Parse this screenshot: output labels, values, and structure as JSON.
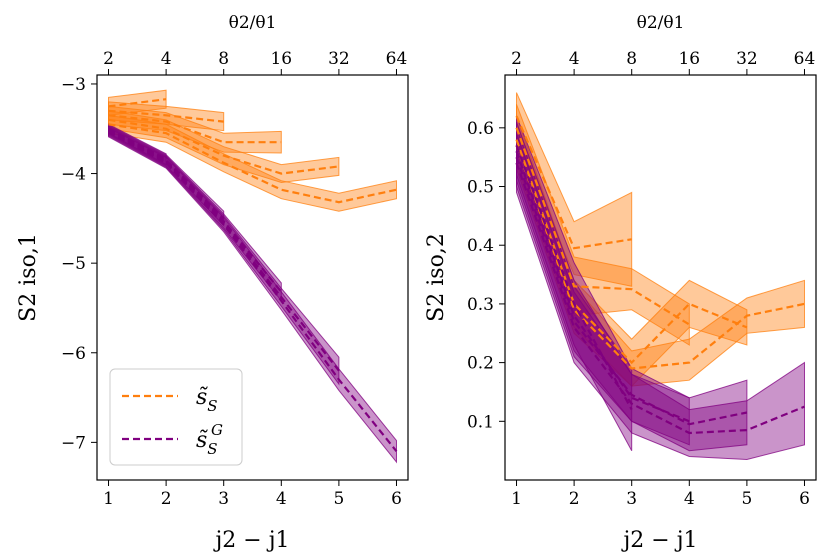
{
  "chart_data": [
    {
      "type": "line",
      "panel": "left",
      "xlabel": "j2 − j1",
      "ylabel": "S2 iso,1",
      "top_xlabel": "θ2/θ1",
      "x_ticks": [
        1,
        2,
        3,
        4,
        5,
        6
      ],
      "x_tick_labels": [
        "1",
        "2",
        "3",
        "4",
        "5",
        "6"
      ],
      "top_tick_labels": [
        "2",
        "4",
        "8",
        "16",
        "32",
        "64"
      ],
      "y_ticks": [
        -3,
        -4,
        -5,
        -6,
        -7
      ],
      "y_tick_labels": [
        "−3",
        "−4",
        "−5",
        "−6",
        "−7"
      ],
      "xlim": [
        0.8,
        6.2
      ],
      "ylim": [
        -7.42,
        -2.9
      ],
      "legend_position": "lower-left",
      "legend": [
        {
          "label": "s̃S",
          "label_base": "s̃",
          "label_sub": "S",
          "label_sup": "",
          "color": "#ff7f0e"
        },
        {
          "label": "s̃S^G",
          "label_base": "s̃",
          "label_sub": "S",
          "label_sup": "G",
          "color": "#800080"
        }
      ],
      "series": [
        {
          "name": "orange j1=1",
          "color": "#ff7f0e",
          "x": [
            1,
            2
          ],
          "y": [
            -3.25,
            -3.17
          ],
          "lower": [
            -3.35,
            -3.27
          ],
          "upper": [
            -3.15,
            -3.07
          ]
        },
        {
          "name": "orange j1=2",
          "color": "#ff7f0e",
          "x": [
            1,
            2,
            3
          ],
          "y": [
            -3.3,
            -3.35,
            -3.42
          ],
          "lower": [
            -3.4,
            -3.45,
            -3.52
          ],
          "upper": [
            -3.2,
            -3.25,
            -3.32
          ]
        },
        {
          "name": "orange j1=3",
          "color": "#ff7f0e",
          "x": [
            1,
            2,
            3,
            4
          ],
          "y": [
            -3.35,
            -3.42,
            -3.65,
            -3.65
          ],
          "lower": [
            -3.45,
            -3.52,
            -3.76,
            -3.77
          ],
          "upper": [
            -3.25,
            -3.32,
            -3.55,
            -3.53
          ]
        },
        {
          "name": "orange j1=4",
          "color": "#ff7f0e",
          "x": [
            1,
            2,
            3,
            4,
            5
          ],
          "y": [
            -3.4,
            -3.5,
            -3.8,
            -4.0,
            -3.92
          ],
          "lower": [
            -3.5,
            -3.6,
            -3.9,
            -4.1,
            -4.02
          ],
          "upper": [
            -3.3,
            -3.4,
            -3.7,
            -3.9,
            -3.82
          ]
        },
        {
          "name": "orange j1=5",
          "color": "#ff7f0e",
          "x": [
            1,
            2,
            3,
            4,
            5,
            6
          ],
          "y": [
            -3.45,
            -3.55,
            -3.88,
            -4.18,
            -4.32,
            -4.18
          ],
          "lower": [
            -3.55,
            -3.65,
            -3.98,
            -4.28,
            -4.42,
            -4.28
          ],
          "upper": [
            -3.35,
            -3.45,
            -3.78,
            -4.08,
            -4.22,
            -4.08
          ]
        },
        {
          "name": "purple j1=1",
          "color": "#800080",
          "x": [
            1,
            2
          ],
          "y": [
            -3.5,
            -3.84
          ],
          "lower": [
            -3.55,
            -3.9
          ],
          "upper": [
            -3.45,
            -3.78
          ]
        },
        {
          "name": "purple j1=2",
          "color": "#800080",
          "x": [
            1,
            2,
            3
          ],
          "y": [
            -3.51,
            -3.85,
            -4.5
          ],
          "lower": [
            -3.56,
            -3.91,
            -4.58
          ],
          "upper": [
            -3.46,
            -3.79,
            -4.42
          ]
        },
        {
          "name": "purple j1=3",
          "color": "#800080",
          "x": [
            1,
            2,
            3,
            4
          ],
          "y": [
            -3.52,
            -3.86,
            -4.53,
            -5.32
          ],
          "lower": [
            -3.57,
            -3.92,
            -4.61,
            -5.42
          ],
          "upper": [
            -3.47,
            -3.8,
            -4.45,
            -5.22
          ]
        },
        {
          "name": "purple j1=4",
          "color": "#800080",
          "x": [
            1,
            2,
            3,
            4,
            5
          ],
          "y": [
            -3.53,
            -3.87,
            -4.55,
            -5.38,
            -6.2
          ],
          "lower": [
            -3.58,
            -3.93,
            -4.63,
            -5.48,
            -6.35
          ],
          "upper": [
            -3.48,
            -3.81,
            -4.47,
            -5.28,
            -6.05
          ]
        },
        {
          "name": "purple j1=5",
          "color": "#800080",
          "x": [
            1,
            2,
            3,
            4,
            5,
            6
          ],
          "y": [
            -3.54,
            -3.88,
            -4.57,
            -5.42,
            -6.3,
            -7.1
          ],
          "lower": [
            -3.59,
            -3.94,
            -4.65,
            -5.52,
            -6.42,
            -7.22
          ],
          "upper": [
            -3.49,
            -3.82,
            -4.49,
            -5.32,
            -6.18,
            -6.98
          ]
        }
      ]
    },
    {
      "type": "line",
      "panel": "right",
      "xlabel": "j2 − j1",
      "ylabel": "S2 iso,2",
      "top_xlabel": "θ2/θ1",
      "x_ticks": [
        1,
        2,
        3,
        4,
        5,
        6
      ],
      "x_tick_labels": [
        "1",
        "2",
        "3",
        "4",
        "5",
        "6"
      ],
      "top_tick_labels": [
        "2",
        "4",
        "8",
        "16",
        "32",
        "64"
      ],
      "y_ticks": [
        0.1,
        0.2,
        0.3,
        0.4,
        0.5,
        0.6
      ],
      "y_tick_labels": [
        "0.1",
        "0.2",
        "0.3",
        "0.4",
        "0.5",
        "0.6"
      ],
      "xlim": [
        0.8,
        6.2
      ],
      "ylim": [
        0.0,
        0.69
      ],
      "series": [
        {
          "name": "orange j1=1",
          "color": "#ff7f0e",
          "x": [
            1,
            2,
            3
          ],
          "y": [
            0.62,
            0.395,
            0.41
          ],
          "lower": [
            0.58,
            0.35,
            0.33
          ],
          "upper": [
            0.66,
            0.44,
            0.49
          ]
        },
        {
          "name": "orange j1=2",
          "color": "#ff7f0e",
          "x": [
            1,
            2,
            3,
            4
          ],
          "y": [
            0.6,
            0.33,
            0.325,
            0.265
          ],
          "lower": [
            0.56,
            0.28,
            0.29,
            0.23
          ],
          "upper": [
            0.64,
            0.38,
            0.36,
            0.3
          ]
        },
        {
          "name": "orange j1=3",
          "color": "#ff7f0e",
          "x": [
            1,
            2,
            3,
            4,
            5
          ],
          "y": [
            0.58,
            0.3,
            0.2,
            0.3,
            0.26
          ],
          "lower": [
            0.54,
            0.26,
            0.16,
            0.26,
            0.23
          ],
          "upper": [
            0.62,
            0.34,
            0.24,
            0.34,
            0.29
          ]
        },
        {
          "name": "orange j1=4",
          "color": "#ff7f0e",
          "x": [
            1,
            2,
            3,
            4,
            5,
            6
          ],
          "y": [
            0.57,
            0.29,
            0.19,
            0.2,
            0.28,
            0.3
          ],
          "lower": [
            0.53,
            0.25,
            0.16,
            0.17,
            0.25,
            0.26
          ],
          "upper": [
            0.61,
            0.33,
            0.22,
            0.24,
            0.31,
            0.34
          ]
        },
        {
          "name": "purple j1=1",
          "color": "#800080",
          "x": [
            1,
            2,
            3
          ],
          "y": [
            0.57,
            0.3,
            0.12
          ],
          "lower": [
            0.52,
            0.23,
            0.05
          ],
          "upper": [
            0.62,
            0.37,
            0.19
          ]
        },
        {
          "name": "purple j1=2",
          "color": "#800080",
          "x": [
            1,
            2,
            3,
            4
          ],
          "y": [
            0.56,
            0.28,
            0.14,
            0.1
          ],
          "lower": [
            0.51,
            0.22,
            0.1,
            0.06
          ],
          "upper": [
            0.61,
            0.34,
            0.18,
            0.14
          ]
        },
        {
          "name": "purple j1=3",
          "color": "#800080",
          "x": [
            1,
            2,
            3,
            4,
            5
          ],
          "y": [
            0.55,
            0.27,
            0.145,
            0.095,
            0.115
          ],
          "lower": [
            0.5,
            0.21,
            0.1,
            0.05,
            0.06
          ],
          "upper": [
            0.6,
            0.33,
            0.19,
            0.14,
            0.17
          ]
        },
        {
          "name": "purple j1=4",
          "color": "#800080",
          "x": [
            1,
            2,
            3,
            4,
            5,
            6
          ],
          "y": [
            0.54,
            0.26,
            0.13,
            0.08,
            0.085,
            0.125
          ],
          "lower": [
            0.49,
            0.2,
            0.08,
            0.04,
            0.035,
            0.06
          ],
          "upper": [
            0.59,
            0.32,
            0.18,
            0.12,
            0.135,
            0.2
          ]
        }
      ]
    }
  ]
}
